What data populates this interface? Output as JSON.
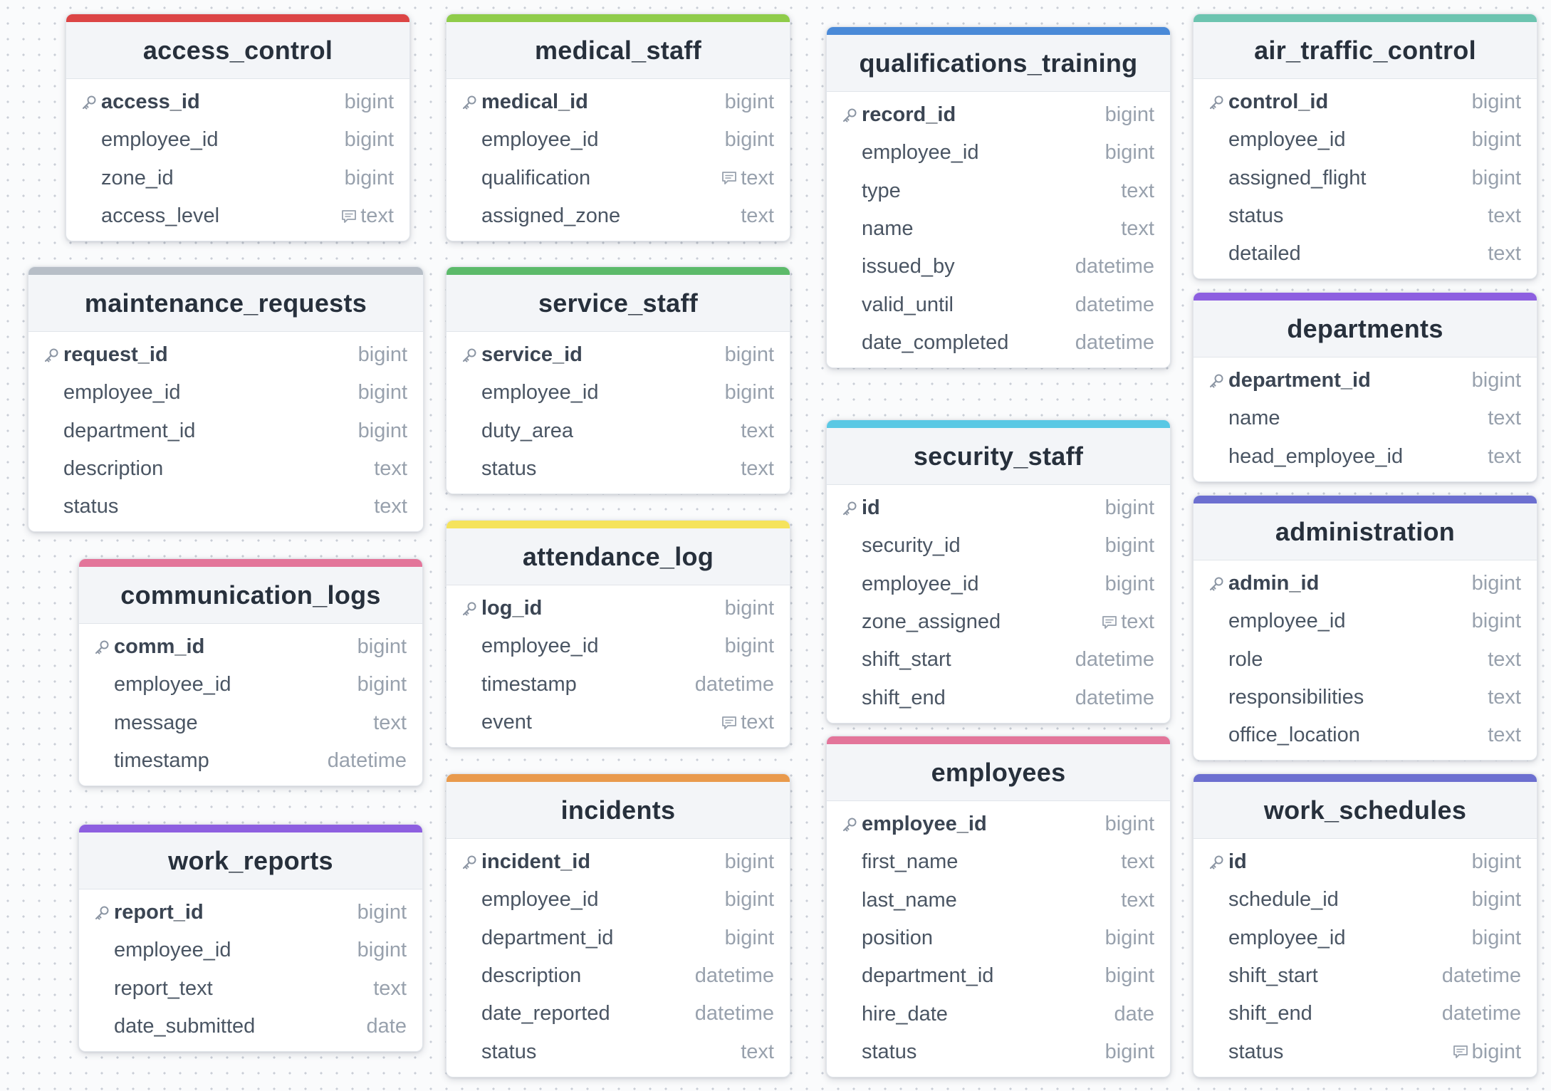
{
  "tables": [
    {
      "id": "access_control",
      "title": "access_control",
      "color": "#dc4545",
      "columns": [
        {
          "name": "access_id",
          "type": "bigint",
          "pk": true
        },
        {
          "name": "employee_id",
          "type": "bigint"
        },
        {
          "name": "zone_id",
          "type": "bigint"
        },
        {
          "name": "access_level",
          "type": "text",
          "note": true
        }
      ]
    },
    {
      "id": "medical_staff",
      "title": "medical_staff",
      "color": "#8fcc4a",
      "columns": [
        {
          "name": "medical_id",
          "type": "bigint",
          "pk": true
        },
        {
          "name": "employee_id",
          "type": "bigint"
        },
        {
          "name": "qualification",
          "type": "text",
          "note": true
        },
        {
          "name": "assigned_zone",
          "type": "text"
        }
      ]
    },
    {
      "id": "qualifications_training",
      "title": "qualifications_training",
      "color": "#4a8ad8",
      "columns": [
        {
          "name": "record_id",
          "type": "bigint",
          "pk": true
        },
        {
          "name": "employee_id",
          "type": "bigint"
        },
        {
          "name": "type",
          "type": "text"
        },
        {
          "name": "name",
          "type": "text"
        },
        {
          "name": "issued_by",
          "type": "datetime"
        },
        {
          "name": "valid_until",
          "type": "datetime"
        },
        {
          "name": "date_completed",
          "type": "datetime"
        }
      ]
    },
    {
      "id": "air_traffic_control",
      "title": "air_traffic_control",
      "color": "#6cc4b0",
      "columns": [
        {
          "name": "control_id",
          "type": "bigint",
          "pk": true
        },
        {
          "name": "employee_id",
          "type": "bigint"
        },
        {
          "name": "assigned_flight",
          "type": "bigint"
        },
        {
          "name": "status",
          "type": "text"
        },
        {
          "name": "detailed",
          "type": "text"
        }
      ]
    },
    {
      "id": "maintenance_requests",
      "title": "maintenance_requests",
      "color": "#b7bec7",
      "columns": [
        {
          "name": "request_id",
          "type": "bigint",
          "pk": true
        },
        {
          "name": "employee_id",
          "type": "bigint"
        },
        {
          "name": "department_id",
          "type": "bigint"
        },
        {
          "name": "description",
          "type": "text"
        },
        {
          "name": "status",
          "type": "text"
        }
      ]
    },
    {
      "id": "service_staff",
      "title": "service_staff",
      "color": "#5cba6a",
      "columns": [
        {
          "name": "service_id",
          "type": "bigint",
          "pk": true
        },
        {
          "name": "employee_id",
          "type": "bigint"
        },
        {
          "name": "duty_area",
          "type": "text"
        },
        {
          "name": "status",
          "type": "text"
        }
      ]
    },
    {
      "id": "departments",
      "title": "departments",
      "color": "#8d5fe0",
      "columns": [
        {
          "name": "department_id",
          "type": "bigint",
          "pk": true
        },
        {
          "name": "name",
          "type": "text"
        },
        {
          "name": "head_employee_id",
          "type": "text"
        }
      ]
    },
    {
      "id": "security_staff",
      "title": "security_staff",
      "color": "#5ac8e4",
      "columns": [
        {
          "name": "id",
          "type": "bigint",
          "pk": true
        },
        {
          "name": "security_id",
          "type": "bigint"
        },
        {
          "name": "employee_id",
          "type": "bigint"
        },
        {
          "name": "zone_assigned",
          "type": "text",
          "note": true
        },
        {
          "name": "shift_start",
          "type": "datetime"
        },
        {
          "name": "shift_end",
          "type": "datetime"
        }
      ]
    },
    {
      "id": "attendance_log",
      "title": "attendance_log",
      "color": "#f5e35c",
      "columns": [
        {
          "name": "log_id",
          "type": "bigint",
          "pk": true
        },
        {
          "name": "employee_id",
          "type": "bigint"
        },
        {
          "name": "timestamp",
          "type": "datetime"
        },
        {
          "name": "event",
          "type": "text",
          "note": true
        }
      ]
    },
    {
      "id": "communication_logs",
      "title": "communication_logs",
      "color": "#e3759a",
      "columns": [
        {
          "name": "comm_id",
          "type": "bigint",
          "pk": true
        },
        {
          "name": "employee_id",
          "type": "bigint"
        },
        {
          "name": "message",
          "type": "text"
        },
        {
          "name": "timestamp",
          "type": "datetime"
        }
      ]
    },
    {
      "id": "administration",
      "title": "administration",
      "color": "#6c6fd0",
      "columns": [
        {
          "name": "admin_id",
          "type": "bigint",
          "pk": true
        },
        {
          "name": "employee_id",
          "type": "bigint"
        },
        {
          "name": "role",
          "type": "text"
        },
        {
          "name": "responsibilities",
          "type": "text"
        },
        {
          "name": "office_location",
          "type": "text"
        }
      ]
    },
    {
      "id": "employees",
      "title": "employees",
      "color": "#e3759a",
      "columns": [
        {
          "name": "employee_id",
          "type": "bigint",
          "pk": true
        },
        {
          "name": "first_name",
          "type": "text"
        },
        {
          "name": "last_name",
          "type": "text"
        },
        {
          "name": "position",
          "type": "bigint"
        },
        {
          "name": "department_id",
          "type": "bigint"
        },
        {
          "name": "hire_date",
          "type": "date"
        },
        {
          "name": "status",
          "type": "bigint"
        }
      ]
    },
    {
      "id": "incidents",
      "title": "incidents",
      "color": "#e99a4c",
      "columns": [
        {
          "name": "incident_id",
          "type": "bigint",
          "pk": true
        },
        {
          "name": "employee_id",
          "type": "bigint"
        },
        {
          "name": "department_id",
          "type": "bigint"
        },
        {
          "name": "description",
          "type": "datetime"
        },
        {
          "name": "date_reported",
          "type": "datetime"
        },
        {
          "name": "status",
          "type": "text"
        }
      ]
    },
    {
      "id": "work_reports",
      "title": "work_reports",
      "color": "#8d5fe0",
      "columns": [
        {
          "name": "report_id",
          "type": "bigint",
          "pk": true
        },
        {
          "name": "employee_id",
          "type": "bigint"
        },
        {
          "name": "report_text",
          "type": "text"
        },
        {
          "name": "date_submitted",
          "type": "date"
        }
      ]
    },
    {
      "id": "work_schedules",
      "title": "work_schedules",
      "color": "#6c6fd0",
      "columns": [
        {
          "name": "id",
          "type": "bigint",
          "pk": true
        },
        {
          "name": "schedule_id",
          "type": "bigint"
        },
        {
          "name": "employee_id",
          "type": "bigint"
        },
        {
          "name": "shift_start",
          "type": "datetime"
        },
        {
          "name": "shift_end",
          "type": "datetime"
        },
        {
          "name": "status",
          "type": "bigint",
          "note": true
        }
      ]
    }
  ]
}
